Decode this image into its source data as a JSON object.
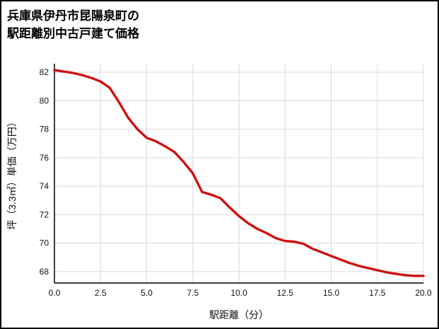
{
  "title": {
    "line1": "兵庫県伊丹市昆陽泉町の",
    "line2": "駅距離別中古戸建て価格"
  },
  "chart_data": {
    "type": "line",
    "title": "兵庫県伊丹市昆陽泉町の駅距離別中古戸建て価格",
    "xlabel": "駅距離（分）",
    "ylabel": "坪（3.3㎡）単価（万円）",
    "xlim": [
      0,
      20
    ],
    "ylim": [
      67.2,
      82.6
    ],
    "xticks": [
      0,
      2.5,
      5,
      7.5,
      10,
      12.5,
      15,
      17.5,
      20
    ],
    "xtick_labels": [
      "0.0",
      "2.5",
      "5.0",
      "7.5",
      "10.0",
      "12.5",
      "15.0",
      "17.5",
      "20.0"
    ],
    "yticks": [
      68,
      70,
      72,
      74,
      76,
      78,
      80,
      82
    ],
    "grid": true,
    "legend": "none",
    "series": [
      {
        "name": "坪単価（万円）",
        "x": [
          0,
          0.5,
          1,
          1.5,
          2,
          2.5,
          3,
          3.5,
          4,
          4.5,
          5,
          5.5,
          6,
          6.5,
          7,
          7.5,
          8,
          8.5,
          9,
          9.5,
          10,
          10.5,
          11,
          11.5,
          12,
          12.5,
          13,
          13.5,
          14,
          14.5,
          15,
          15.5,
          16,
          16.5,
          17,
          17.5,
          18,
          18.5,
          19,
          19.5,
          20
        ],
        "y": [
          82.15,
          82.05,
          81.95,
          81.8,
          81.6,
          81.35,
          80.9,
          79.9,
          78.8,
          78.0,
          77.4,
          77.15,
          76.8,
          76.4,
          75.7,
          74.9,
          73.6,
          73.4,
          73.15,
          72.5,
          71.9,
          71.4,
          71.0,
          70.7,
          70.35,
          70.15,
          70.1,
          69.95,
          69.6,
          69.35,
          69.1,
          68.85,
          68.6,
          68.4,
          68.25,
          68.1,
          67.95,
          67.85,
          67.75,
          67.7,
          67.7
        ]
      }
    ],
    "colors": {
      "line": "#cc1111",
      "grid": "#d9d9d9",
      "axis": "#000000",
      "text": "#111111",
      "background": "#ffffff"
    }
  }
}
